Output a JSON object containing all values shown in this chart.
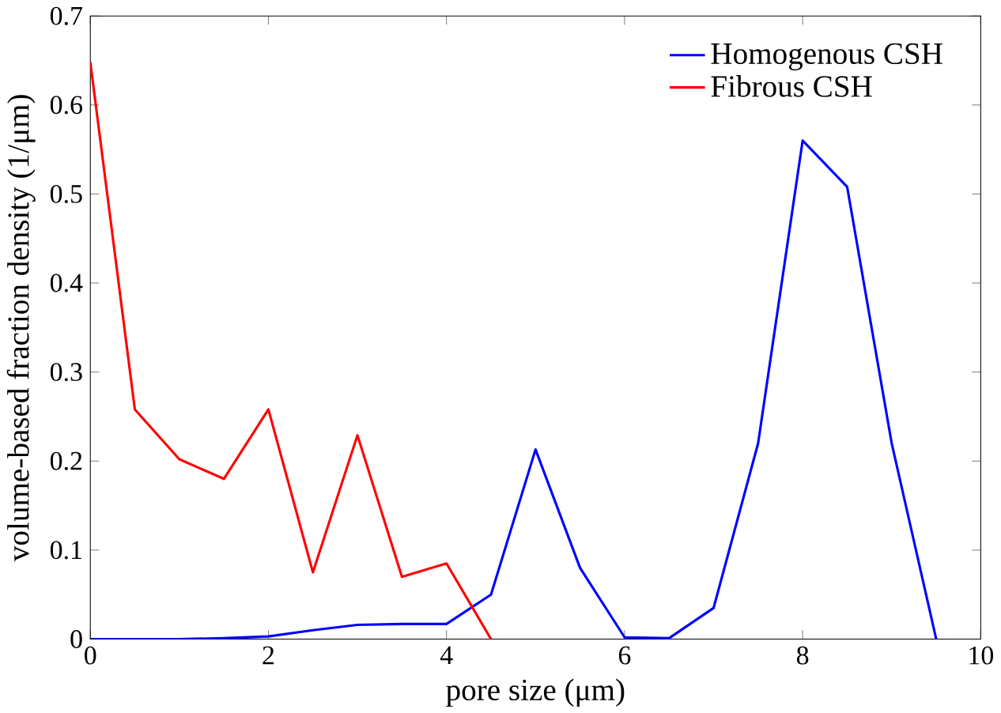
{
  "chart_data": {
    "type": "line",
    "xlabel": "pore size (μm)",
    "ylabel": "volume-based fraction density (1/μm)",
    "xlim": [
      0,
      10
    ],
    "ylim": [
      0,
      0.7
    ],
    "xticks": [
      0,
      2,
      4,
      6,
      8,
      10
    ],
    "yticks": [
      0,
      0.1,
      0.2,
      0.3,
      0.4,
      0.5,
      0.6,
      0.7
    ],
    "legend": "top right",
    "grid": false,
    "marker": "none",
    "line_style": "solid",
    "series": [
      {
        "name": "Homogenous CSH",
        "color": "#0000ff",
        "x": [
          0,
          0.5,
          1,
          1.5,
          2,
          2.5,
          3,
          3.5,
          4,
          4.5,
          5,
          5.5,
          6,
          6.5,
          7,
          7.5,
          8,
          8.5,
          9,
          9.5
        ],
        "values": [
          0,
          0,
          0,
          0.001,
          0.003,
          0.01,
          0.016,
          0.017,
          0.017,
          0.05,
          0.213,
          0.08,
          0.002,
          0.001,
          0.035,
          0.22,
          0.56,
          0.508,
          0.22,
          0
        ]
      },
      {
        "name": "Fibrous CSH",
        "color": "#ff0000",
        "x": [
          0,
          0.5,
          1,
          1.5,
          2,
          2.5,
          3,
          3.5,
          4,
          4.5
        ],
        "values": [
          0.648,
          0.258,
          0.202,
          0.18,
          0.258,
          0.075,
          0.229,
          0.07,
          0.085,
          0
        ]
      }
    ]
  }
}
